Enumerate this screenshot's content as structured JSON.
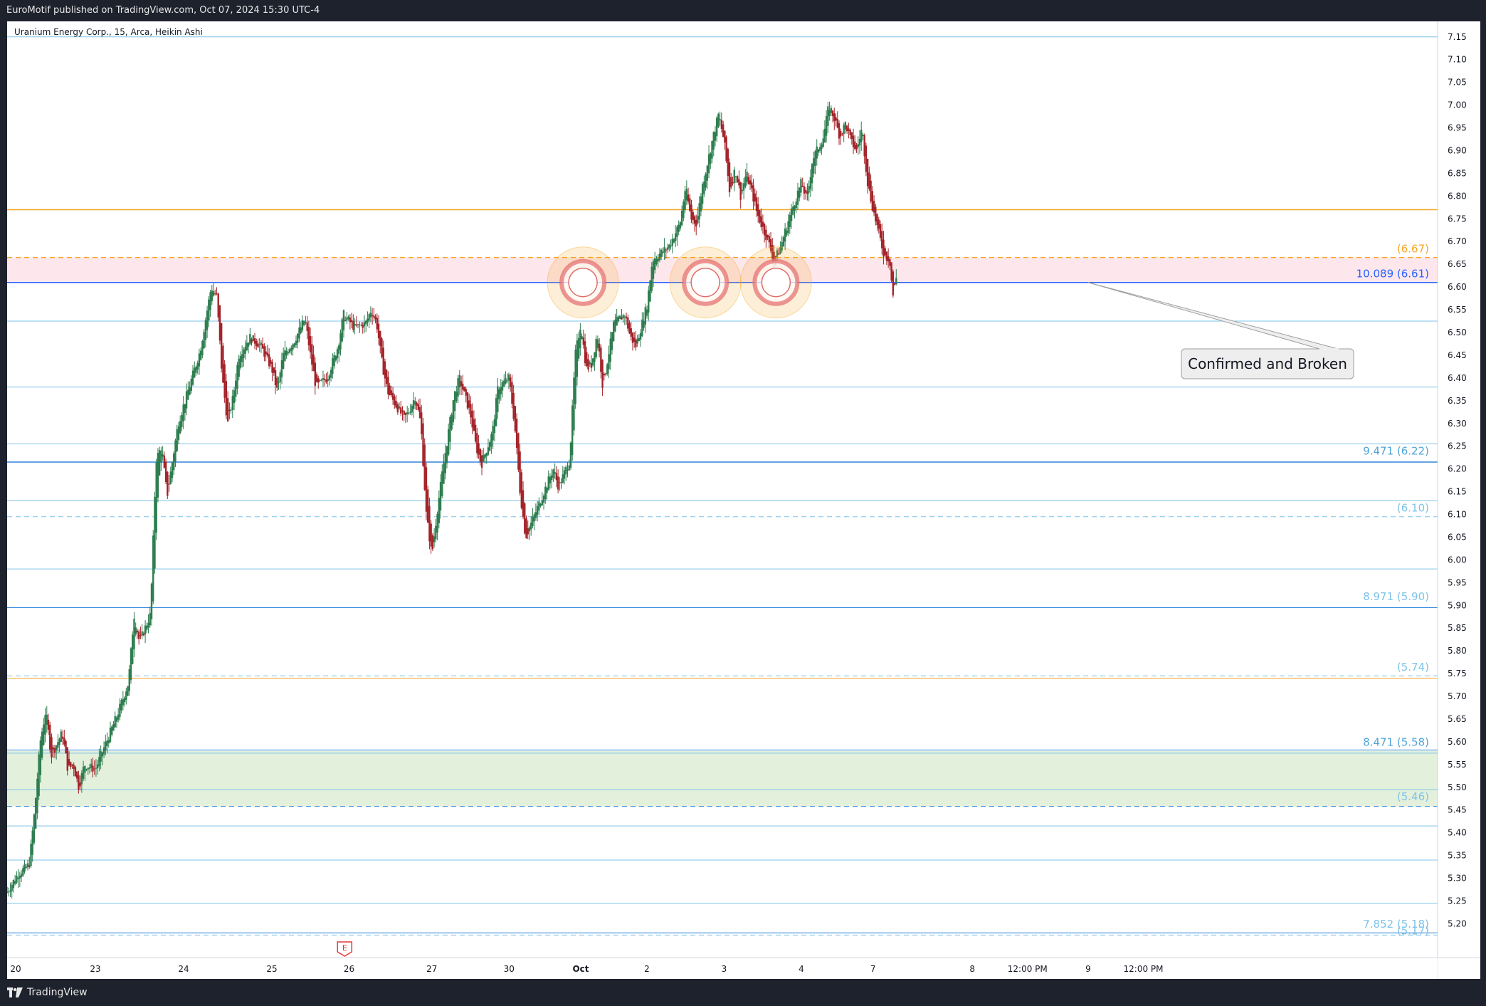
{
  "header": {
    "published_by": "EuroMotif published on TradingView.com, Oct 07, 2024 15:30 UTC-4"
  },
  "footer": {
    "brand": "TradingView"
  },
  "chart_data": {
    "type": "candlestick",
    "symbol_legend": "Uranium Energy Corp., 15, Arca, Heikin Ashi",
    "candle_style": "Heikin Ashi",
    "colors": {
      "up": "#2e7d4f",
      "down": "#a3242a",
      "orange_level": "#f5a623",
      "blue_level": "#2962ff",
      "light_blue_level": "#7ec3e8",
      "demand_zone": "#e3f0dc",
      "resistance_band": "#fde7ec"
    },
    "y_axis": {
      "min": 5.15,
      "max": 7.15,
      "ticks": [
        "7.15",
        "7.10",
        "7.05",
        "7.00",
        "6.95",
        "6.90",
        "6.85",
        "6.80",
        "6.75",
        "6.70",
        "6.65",
        "6.60",
        "6.55",
        "6.50",
        "6.45",
        "6.40",
        "6.35",
        "6.30",
        "6.25",
        "6.20",
        "6.15",
        "6.10",
        "6.05",
        "6.00",
        "5.95",
        "5.90",
        "5.85",
        "5.80",
        "5.75",
        "5.70",
        "5.65",
        "5.60",
        "5.55",
        "5.50",
        "5.45",
        "5.40",
        "5.35",
        "5.30",
        "5.25",
        "5.20"
      ]
    },
    "x_axis": {
      "ticks": [
        {
          "label": "20",
          "t": 0.0
        },
        {
          "label": "23",
          "t": 0.08
        },
        {
          "label": "24",
          "t": 0.16
        },
        {
          "label": "25",
          "t": 0.24
        },
        {
          "label": "26",
          "t": 0.31
        },
        {
          "label": "27",
          "t": 0.385
        },
        {
          "label": "30",
          "t": 0.455
        },
        {
          "label": "Oct",
          "t": 0.52
        },
        {
          "label": "2",
          "t": 0.58
        },
        {
          "label": "3",
          "t": 0.65
        },
        {
          "label": "4",
          "t": 0.72
        },
        {
          "label": "7",
          "t": 0.785
        },
        {
          "label": "8",
          "t": 0.875
        },
        {
          "label": "12:00 PM",
          "t": 0.925
        },
        {
          "label": "9",
          "t": 0.98
        },
        {
          "label": "12:00 PM",
          "t": 1.03
        }
      ]
    },
    "price_path": [
      {
        "t": 0.0,
        "p": 5.27
      },
      {
        "t": 0.01,
        "p": 5.31
      },
      {
        "t": 0.02,
        "p": 5.33
      },
      {
        "t": 0.025,
        "p": 5.45
      },
      {
        "t": 0.03,
        "p": 5.6
      },
      {
        "t": 0.035,
        "p": 5.67
      },
      {
        "t": 0.04,
        "p": 5.57
      },
      {
        "t": 0.05,
        "p": 5.62
      },
      {
        "t": 0.055,
        "p": 5.54
      },
      {
        "t": 0.06,
        "p": 5.55
      },
      {
        "t": 0.065,
        "p": 5.5
      },
      {
        "t": 0.07,
        "p": 5.55
      },
      {
        "t": 0.08,
        "p": 5.54
      },
      {
        "t": 0.09,
        "p": 5.6
      },
      {
        "t": 0.1,
        "p": 5.66
      },
      {
        "t": 0.11,
        "p": 5.73
      },
      {
        "t": 0.115,
        "p": 5.88
      },
      {
        "t": 0.12,
        "p": 5.82
      },
      {
        "t": 0.13,
        "p": 5.88
      },
      {
        "t": 0.135,
        "p": 6.22
      },
      {
        "t": 0.14,
        "p": 6.25
      },
      {
        "t": 0.145,
        "p": 6.14
      },
      {
        "t": 0.15,
        "p": 6.22
      },
      {
        "t": 0.155,
        "p": 6.3
      },
      {
        "t": 0.165,
        "p": 6.38
      },
      {
        "t": 0.175,
        "p": 6.46
      },
      {
        "t": 0.185,
        "p": 6.6
      },
      {
        "t": 0.19,
        "p": 6.58
      },
      {
        "t": 0.195,
        "p": 6.4
      },
      {
        "t": 0.2,
        "p": 6.3
      },
      {
        "t": 0.205,
        "p": 6.36
      },
      {
        "t": 0.21,
        "p": 6.45
      },
      {
        "t": 0.22,
        "p": 6.49
      },
      {
        "t": 0.23,
        "p": 6.47
      },
      {
        "t": 0.24,
        "p": 6.42
      },
      {
        "t": 0.245,
        "p": 6.37
      },
      {
        "t": 0.25,
        "p": 6.45
      },
      {
        "t": 0.26,
        "p": 6.48
      },
      {
        "t": 0.27,
        "p": 6.53
      },
      {
        "t": 0.275,
        "p": 6.45
      },
      {
        "t": 0.28,
        "p": 6.38
      },
      {
        "t": 0.29,
        "p": 6.4
      },
      {
        "t": 0.3,
        "p": 6.47
      },
      {
        "t": 0.305,
        "p": 6.54
      },
      {
        "t": 0.315,
        "p": 6.51
      },
      {
        "t": 0.325,
        "p": 6.52
      },
      {
        "t": 0.33,
        "p": 6.55
      },
      {
        "t": 0.335,
        "p": 6.52
      },
      {
        "t": 0.34,
        "p": 6.43
      },
      {
        "t": 0.345,
        "p": 6.37
      },
      {
        "t": 0.355,
        "p": 6.33
      },
      {
        "t": 0.36,
        "p": 6.31
      },
      {
        "t": 0.365,
        "p": 6.33
      },
      {
        "t": 0.37,
        "p": 6.36
      },
      {
        "t": 0.375,
        "p": 6.3
      },
      {
        "t": 0.38,
        "p": 6.1
      },
      {
        "t": 0.385,
        "p": 6.01
      },
      {
        "t": 0.39,
        "p": 6.11
      },
      {
        "t": 0.395,
        "p": 6.2
      },
      {
        "t": 0.405,
        "p": 6.36
      },
      {
        "t": 0.41,
        "p": 6.4
      },
      {
        "t": 0.415,
        "p": 6.36
      },
      {
        "t": 0.42,
        "p": 6.32
      },
      {
        "t": 0.425,
        "p": 6.25
      },
      {
        "t": 0.43,
        "p": 6.21
      },
      {
        "t": 0.44,
        "p": 6.28
      },
      {
        "t": 0.445,
        "p": 6.38
      },
      {
        "t": 0.455,
        "p": 6.4
      },
      {
        "t": 0.46,
        "p": 6.3
      },
      {
        "t": 0.465,
        "p": 6.15
      },
      {
        "t": 0.47,
        "p": 6.05
      },
      {
        "t": 0.475,
        "p": 6.08
      },
      {
        "t": 0.485,
        "p": 6.14
      },
      {
        "t": 0.495,
        "p": 6.2
      },
      {
        "t": 0.5,
        "p": 6.16
      },
      {
        "t": 0.51,
        "p": 6.22
      },
      {
        "t": 0.515,
        "p": 6.45
      },
      {
        "t": 0.52,
        "p": 6.52
      },
      {
        "t": 0.525,
        "p": 6.42
      },
      {
        "t": 0.53,
        "p": 6.43
      },
      {
        "t": 0.535,
        "p": 6.5
      },
      {
        "t": 0.54,
        "p": 6.38
      },
      {
        "t": 0.545,
        "p": 6.45
      },
      {
        "t": 0.55,
        "p": 6.52
      },
      {
        "t": 0.56,
        "p": 6.54
      },
      {
        "t": 0.565,
        "p": 6.49
      },
      {
        "t": 0.57,
        "p": 6.47
      },
      {
        "t": 0.58,
        "p": 6.56
      },
      {
        "t": 0.585,
        "p": 6.66
      },
      {
        "t": 0.59,
        "p": 6.67
      },
      {
        "t": 0.6,
        "p": 6.69
      },
      {
        "t": 0.61,
        "p": 6.74
      },
      {
        "t": 0.615,
        "p": 6.82
      },
      {
        "t": 0.62,
        "p": 6.75
      },
      {
        "t": 0.625,
        "p": 6.74
      },
      {
        "t": 0.63,
        "p": 6.82
      },
      {
        "t": 0.64,
        "p": 6.93
      },
      {
        "t": 0.645,
        "p": 6.98
      },
      {
        "t": 0.65,
        "p": 6.92
      },
      {
        "t": 0.655,
        "p": 6.81
      },
      {
        "t": 0.66,
        "p": 6.86
      },
      {
        "t": 0.665,
        "p": 6.8
      },
      {
        "t": 0.67,
        "p": 6.85
      },
      {
        "t": 0.675,
        "p": 6.81
      },
      {
        "t": 0.68,
        "p": 6.76
      },
      {
        "t": 0.69,
        "p": 6.7
      },
      {
        "t": 0.695,
        "p": 6.66
      },
      {
        "t": 0.7,
        "p": 6.68
      },
      {
        "t": 0.705,
        "p": 6.72
      },
      {
        "t": 0.71,
        "p": 6.76
      },
      {
        "t": 0.72,
        "p": 6.83
      },
      {
        "t": 0.725,
        "p": 6.79
      },
      {
        "t": 0.73,
        "p": 6.88
      },
      {
        "t": 0.74,
        "p": 6.93
      },
      {
        "t": 0.745,
        "p": 7.0
      },
      {
        "t": 0.75,
        "p": 6.97
      },
      {
        "t": 0.755,
        "p": 6.93
      },
      {
        "t": 0.76,
        "p": 6.96
      },
      {
        "t": 0.765,
        "p": 6.92
      },
      {
        "t": 0.77,
        "p": 6.9
      },
      {
        "t": 0.775,
        "p": 6.95
      },
      {
        "t": 0.78,
        "p": 6.83
      },
      {
        "t": 0.785,
        "p": 6.77
      },
      {
        "t": 0.79,
        "p": 6.72
      },
      {
        "t": 0.795,
        "p": 6.67
      },
      {
        "t": 0.8,
        "p": 6.66
      },
      {
        "t": 0.803,
        "p": 6.58
      },
      {
        "t": 0.806,
        "p": 6.62
      }
    ],
    "horizontal_levels": [
      {
        "price": 7.15,
        "color": "#7ec3e8",
        "style": "solid",
        "width": 1
      },
      {
        "price": 6.77,
        "color": "#f5a623",
        "style": "solid",
        "width": 1.5
      },
      {
        "price": 6.665,
        "color": "#f5a623",
        "style": "dashed",
        "width": 1.5
      },
      {
        "price": 6.61,
        "color": "#2962ff",
        "style": "solid",
        "width": 1.5
      },
      {
        "price": 6.525,
        "color": "#7ec3e8",
        "style": "solid",
        "width": 1
      },
      {
        "price": 6.38,
        "color": "#7ec3e8",
        "style": "solid",
        "width": 1
      },
      {
        "price": 6.255,
        "color": "#7ec3e8",
        "style": "solid",
        "width": 1
      },
      {
        "price": 6.215,
        "color": "#2e86de",
        "style": "solid",
        "width": 1.5
      },
      {
        "price": 6.13,
        "color": "#7ec3e8",
        "style": "solid",
        "width": 1
      },
      {
        "price": 6.095,
        "color": "#7ec3e8",
        "style": "dashed",
        "width": 1
      },
      {
        "price": 5.98,
        "color": "#7ec3e8",
        "style": "solid",
        "width": 1
      },
      {
        "price": 5.895,
        "color": "#2e86de",
        "style": "solid",
        "width": 1
      },
      {
        "price": 5.745,
        "color": "#7ec3e8",
        "style": "dashed",
        "width": 1
      },
      {
        "price": 5.74,
        "color": "#f5a623",
        "style": "solid",
        "width": 1
      },
      {
        "price": 5.582,
        "color": "#2e86de",
        "style": "solid",
        "width": 1
      },
      {
        "price": 5.575,
        "color": "#7ec3e8",
        "style": "solid",
        "width": 1
      },
      {
        "price": 5.495,
        "color": "#7ec3e8",
        "style": "solid",
        "width": 1
      },
      {
        "price": 5.458,
        "color": "#2e86de",
        "style": "dashed",
        "width": 1
      },
      {
        "price": 5.415,
        "color": "#7ec3e8",
        "style": "solid",
        "width": 1
      },
      {
        "price": 5.34,
        "color": "#7ec3e8",
        "style": "solid",
        "width": 1
      },
      {
        "price": 5.245,
        "color": "#7ec3e8",
        "style": "solid",
        "width": 1
      },
      {
        "price": 5.18,
        "color": "#2e86de",
        "style": "solid",
        "width": 1
      },
      {
        "price": 5.175,
        "color": "#7ec3e8",
        "style": "dashed",
        "width": 1
      }
    ],
    "zones": [
      {
        "top": 6.665,
        "bottom": 6.61,
        "color": "#fde7ec"
      },
      {
        "top": 5.58,
        "bottom": 5.458,
        "color": "#e3f0dc"
      }
    ],
    "level_labels": [
      {
        "text": "(6.67)",
        "price": 6.67,
        "color": "#f5a623"
      },
      {
        "text": "10.089 (6.61)",
        "price": 6.615,
        "color": "#2962ff"
      },
      {
        "text": "9.471 (6.22)",
        "price": 6.225,
        "color": "#4fa3d8"
      },
      {
        "text": "(6.10)",
        "price": 6.1,
        "color": "#7ec3e8"
      },
      {
        "text": "8.971 (5.90)",
        "price": 5.905,
        "color": "#7ec3e8"
      },
      {
        "text": "(5.74)",
        "price": 5.75,
        "color": "#7ec3e8"
      },
      {
        "text": "8.471 (5.58)",
        "price": 5.585,
        "color": "#4fa3d8"
      },
      {
        "text": "(5.46)",
        "price": 5.465,
        "color": "#7ec3e8"
      },
      {
        "text": "7.852 (5.18)",
        "price": 5.185,
        "color": "#7ec3e8"
      },
      {
        "text": "(5.17)",
        "price": 5.17,
        "color": "#7ec3e8"
      }
    ],
    "touch_markers": [
      {
        "t": 0.522,
        "price": 6.61
      },
      {
        "t": 0.633,
        "price": 6.61
      },
      {
        "t": 0.697,
        "price": 6.61
      }
    ],
    "callout": {
      "text": "Confirmed and Broken",
      "anchor_t": 0.98,
      "anchor_price": 6.61
    },
    "earnings_marker": {
      "label": "E",
      "t": 0.306
    }
  }
}
